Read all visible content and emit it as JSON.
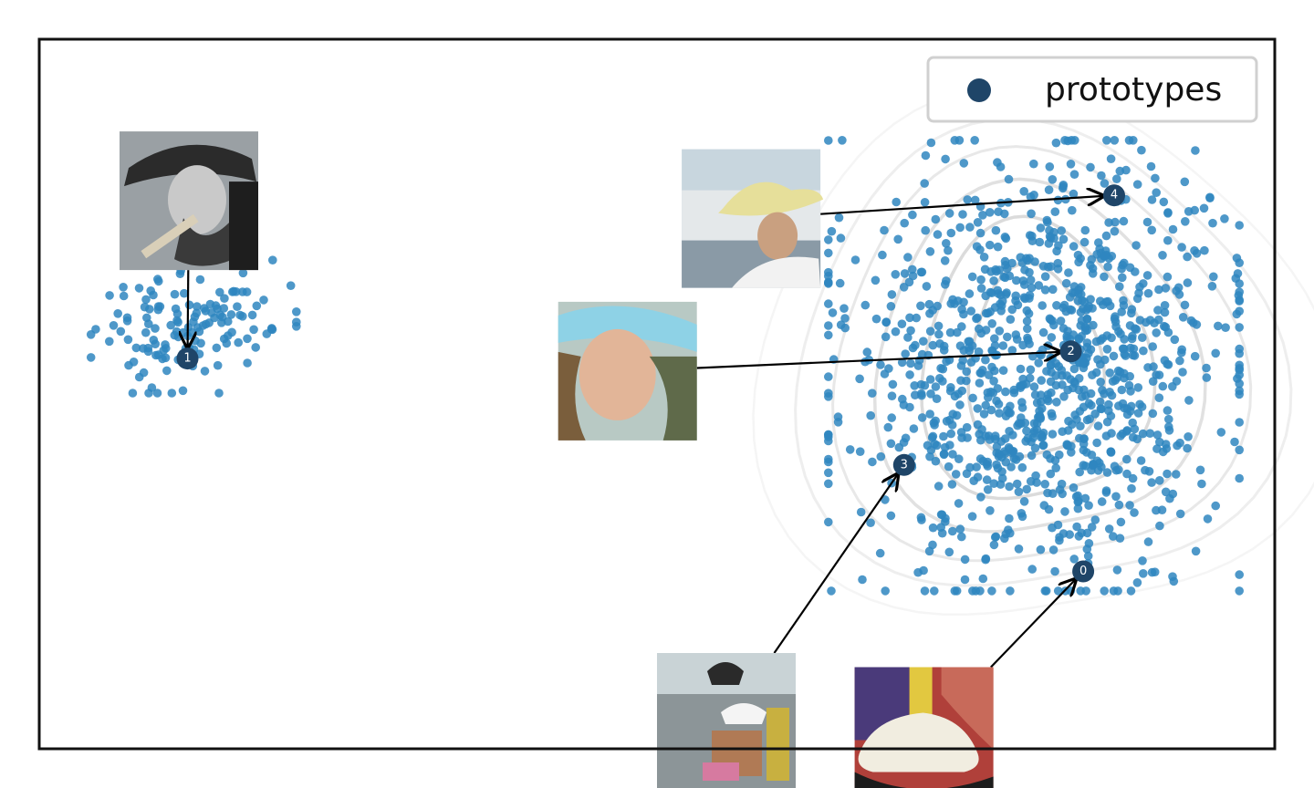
{
  "chart_data": {
    "type": "scatter",
    "title": "",
    "xlabel": "",
    "ylabel": "",
    "grid": false,
    "axes_ticks": false,
    "xlim": [
      0,
      100
    ],
    "ylim": [
      0,
      100
    ],
    "legend": {
      "placement": "top-right",
      "entries": [
        "prototypes"
      ]
    },
    "colors": {
      "points": "#2f86c0",
      "prototypes": "#1f4568",
      "contours": "#bdbdbd",
      "arrows": "#000000",
      "frame": "#111111"
    },
    "clusters": [
      {
        "name": "",
        "center": [
          12.5,
          59.5
        ],
        "spread": [
          5.5,
          6.2
        ],
        "count": 140,
        "seed": 11
      },
      {
        "name": "",
        "center": [
          80.5,
          54.0
        ],
        "spread": [
          11.0,
          21.0
        ],
        "count": 1100,
        "seed": 23
      }
    ],
    "prototypes": [
      {
        "label": "0",
        "x": 84.5,
        "y": 25.0,
        "image": "cowboy hat on display"
      },
      {
        "label": "1",
        "x": 12.0,
        "y": 55.0,
        "image": "man with cowboy hat smoking cigar"
      },
      {
        "label": "2",
        "x": 83.5,
        "y": 56.0,
        "image": "woman with light blue cowboy hat"
      },
      {
        "label": "3",
        "x": 70.0,
        "y": 40.0,
        "image": "people wearing hats on street"
      },
      {
        "label": "4",
        "x": 87.0,
        "y": 78.0,
        "image": "man with straw cowboy hat"
      }
    ],
    "thumbnails": [
      {
        "prototype": "1",
        "x": 6.5,
        "y": 87.0
      },
      {
        "prototype": "4",
        "x": 52.0,
        "y": 84.5
      },
      {
        "prototype": "2",
        "x": 42.0,
        "y": 63.0
      },
      {
        "prototype": "3",
        "x": 50.0,
        "y": 13.5
      },
      {
        "prototype": "0",
        "x": 66.0,
        "y": 11.5
      }
    ]
  }
}
